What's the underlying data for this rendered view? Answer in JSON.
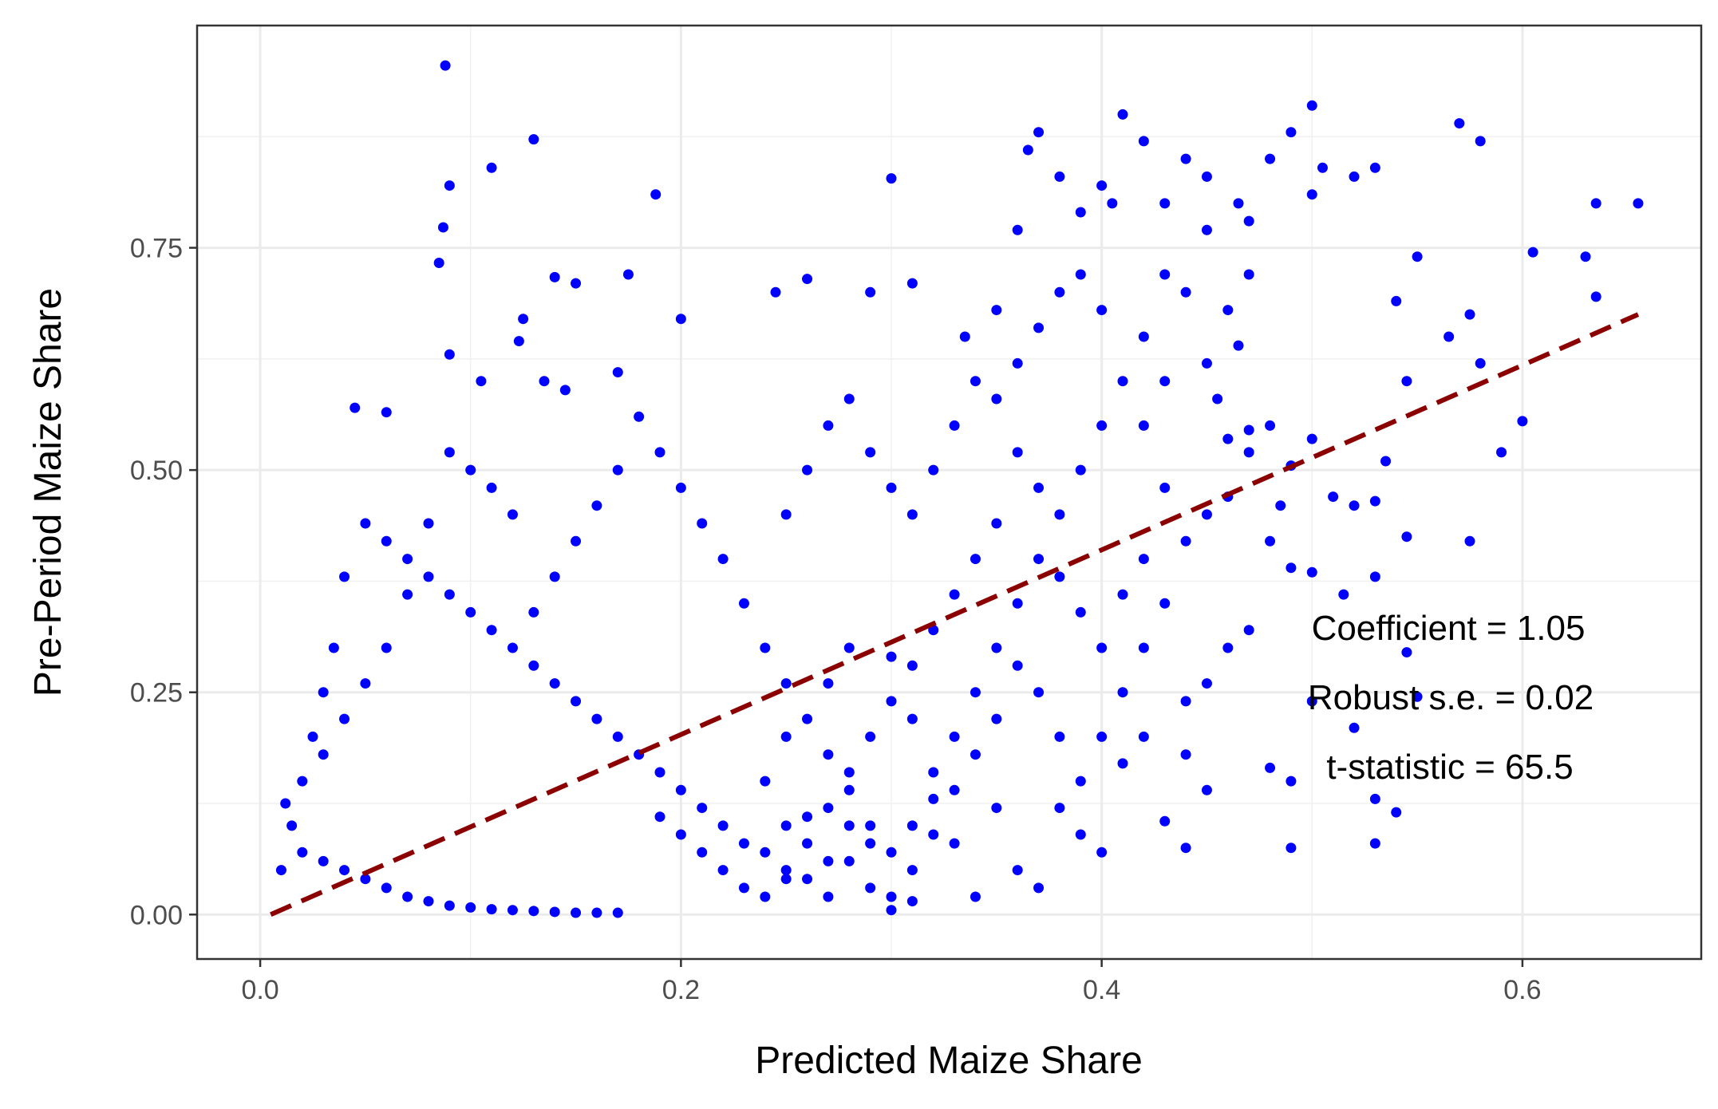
{
  "chart_data": {
    "type": "scatter",
    "title": "",
    "xlabel": "Predicted Maize Share",
    "ylabel": "Pre-Period Maize Share",
    "xlim": [
      -0.03,
      0.685
    ],
    "ylim": [
      -0.05,
      1.0
    ],
    "x_ticks": [
      {
        "value": 0.0,
        "label": "0.0"
      },
      {
        "value": 0.2,
        "label": "0.2"
      },
      {
        "value": 0.4,
        "label": "0.4"
      },
      {
        "value": 0.6,
        "label": "0.6"
      }
    ],
    "y_ticks": [
      {
        "value": 0.0,
        "label": "0.00"
      },
      {
        "value": 0.25,
        "label": "0.25"
      },
      {
        "value": 0.5,
        "label": "0.50"
      },
      {
        "value": 0.75,
        "label": "0.75"
      }
    ],
    "grid": true,
    "point_color": "#0000ff",
    "fit_line": {
      "style": "dashed",
      "color": "#8b0000",
      "x": [
        0.005,
        0.655
      ],
      "y": [
        0.0,
        0.675
      ]
    },
    "annotations": [
      "Coefficient = 1.05",
      "Robust s.e. = 0.02",
      "t-statistic = 65.5"
    ],
    "series": [
      {
        "points": [
          [
            0.088,
            0.955
          ],
          [
            0.13,
            0.872
          ],
          [
            0.11,
            0.84
          ],
          [
            0.09,
            0.82
          ],
          [
            0.188,
            0.81
          ],
          [
            0.087,
            0.773
          ],
          [
            0.085,
            0.733
          ],
          [
            0.14,
            0.717
          ],
          [
            0.15,
            0.71
          ],
          [
            0.175,
            0.72
          ],
          [
            0.125,
            0.67
          ],
          [
            0.123,
            0.645
          ],
          [
            0.2,
            0.67
          ],
          [
            0.09,
            0.63
          ],
          [
            0.105,
            0.6
          ],
          [
            0.17,
            0.61
          ],
          [
            0.135,
            0.6
          ],
          [
            0.145,
            0.59
          ],
          [
            0.06,
            0.565
          ],
          [
            0.045,
            0.57
          ],
          [
            0.3,
            0.828
          ],
          [
            0.26,
            0.715
          ],
          [
            0.245,
            0.7
          ],
          [
            0.29,
            0.7
          ],
          [
            0.31,
            0.71
          ],
          [
            0.335,
            0.65
          ],
          [
            0.35,
            0.68
          ],
          [
            0.36,
            0.77
          ],
          [
            0.365,
            0.86
          ],
          [
            0.37,
            0.88
          ],
          [
            0.38,
            0.83
          ],
          [
            0.39,
            0.79
          ],
          [
            0.4,
            0.82
          ],
          [
            0.405,
            0.8
          ],
          [
            0.41,
            0.9
          ],
          [
            0.42,
            0.87
          ],
          [
            0.43,
            0.8
          ],
          [
            0.44,
            0.85
          ],
          [
            0.45,
            0.83
          ],
          [
            0.465,
            0.8
          ],
          [
            0.47,
            0.78
          ],
          [
            0.48,
            0.85
          ],
          [
            0.49,
            0.88
          ],
          [
            0.5,
            0.91
          ],
          [
            0.505,
            0.84
          ],
          [
            0.5,
            0.81
          ],
          [
            0.52,
            0.83
          ],
          [
            0.53,
            0.84
          ],
          [
            0.57,
            0.89
          ],
          [
            0.58,
            0.87
          ],
          [
            0.635,
            0.8
          ],
          [
            0.655,
            0.8
          ],
          [
            0.605,
            0.745
          ],
          [
            0.63,
            0.74
          ],
          [
            0.635,
            0.695
          ],
          [
            0.575,
            0.675
          ],
          [
            0.55,
            0.74
          ],
          [
            0.54,
            0.69
          ],
          [
            0.565,
            0.65
          ],
          [
            0.545,
            0.6
          ],
          [
            0.58,
            0.62
          ],
          [
            0.6,
            0.555
          ],
          [
            0.59,
            0.52
          ],
          [
            0.535,
            0.51
          ],
          [
            0.53,
            0.465
          ],
          [
            0.545,
            0.425
          ],
          [
            0.575,
            0.42
          ],
          [
            0.48,
            0.55
          ],
          [
            0.47,
            0.545
          ],
          [
            0.46,
            0.535
          ],
          [
            0.49,
            0.505
          ],
          [
            0.5,
            0.535
          ],
          [
            0.51,
            0.47
          ],
          [
            0.52,
            0.46
          ],
          [
            0.485,
            0.46
          ],
          [
            0.48,
            0.42
          ],
          [
            0.49,
            0.39
          ],
          [
            0.5,
            0.385
          ],
          [
            0.515,
            0.36
          ],
          [
            0.53,
            0.38
          ],
          [
            0.545,
            0.295
          ],
          [
            0.55,
            0.245
          ],
          [
            0.52,
            0.21
          ],
          [
            0.5,
            0.24
          ],
          [
            0.49,
            0.15
          ],
          [
            0.48,
            0.165
          ],
          [
            0.53,
            0.13
          ],
          [
            0.54,
            0.115
          ],
          [
            0.53,
            0.08
          ],
          [
            0.49,
            0.075
          ],
          [
            0.47,
            0.32
          ],
          [
            0.46,
            0.3
          ],
          [
            0.45,
            0.26
          ],
          [
            0.44,
            0.24
          ],
          [
            0.44,
            0.18
          ],
          [
            0.45,
            0.14
          ],
          [
            0.43,
            0.105
          ],
          [
            0.44,
            0.075
          ],
          [
            0.42,
            0.2
          ],
          [
            0.41,
            0.17
          ],
          [
            0.45,
            0.45
          ],
          [
            0.44,
            0.42
          ],
          [
            0.43,
            0.48
          ],
          [
            0.46,
            0.47
          ],
          [
            0.42,
            0.55
          ],
          [
            0.43,
            0.6
          ],
          [
            0.45,
            0.62
          ],
          [
            0.44,
            0.7
          ],
          [
            0.43,
            0.72
          ],
          [
            0.45,
            0.77
          ],
          [
            0.46,
            0.68
          ],
          [
            0.47,
            0.72
          ],
          [
            0.465,
            0.64
          ],
          [
            0.455,
            0.58
          ],
          [
            0.47,
            0.52
          ],
          [
            0.33,
            0.08
          ],
          [
            0.34,
            0.02
          ],
          [
            0.31,
            0.015
          ],
          [
            0.3,
            0.005
          ],
          [
            0.36,
            0.05
          ],
          [
            0.38,
            0.12
          ],
          [
            0.39,
            0.09
          ],
          [
            0.4,
            0.07
          ],
          [
            0.37,
            0.03
          ],
          [
            0.35,
            0.12
          ],
          [
            0.32,
            0.16
          ],
          [
            0.31,
            0.22
          ],
          [
            0.3,
            0.29
          ],
          [
            0.28,
            0.3
          ],
          [
            0.27,
            0.26
          ],
          [
            0.25,
            0.2
          ],
          [
            0.24,
            0.15
          ],
          [
            0.26,
            0.11
          ],
          [
            0.28,
            0.06
          ],
          [
            0.29,
            0.03
          ],
          [
            0.27,
            0.02
          ],
          [
            0.25,
            0.05
          ],
          [
            0.23,
            0.08
          ],
          [
            0.22,
            0.1
          ],
          [
            0.21,
            0.12
          ],
          [
            0.2,
            0.14
          ],
          [
            0.19,
            0.16
          ],
          [
            0.18,
            0.18
          ],
          [
            0.17,
            0.2
          ],
          [
            0.16,
            0.22
          ],
          [
            0.15,
            0.24
          ],
          [
            0.14,
            0.26
          ],
          [
            0.13,
            0.28
          ],
          [
            0.12,
            0.3
          ],
          [
            0.11,
            0.32
          ],
          [
            0.1,
            0.34
          ],
          [
            0.09,
            0.36
          ],
          [
            0.08,
            0.38
          ],
          [
            0.07,
            0.4
          ],
          [
            0.06,
            0.42
          ],
          [
            0.05,
            0.44
          ],
          [
            0.04,
            0.38
          ],
          [
            0.035,
            0.3
          ],
          [
            0.03,
            0.25
          ],
          [
            0.025,
            0.2
          ],
          [
            0.02,
            0.15
          ],
          [
            0.015,
            0.1
          ],
          [
            0.012,
            0.125
          ],
          [
            0.01,
            0.05
          ],
          [
            0.02,
            0.07
          ],
          [
            0.03,
            0.06
          ],
          [
            0.04,
            0.05
          ],
          [
            0.05,
            0.04
          ],
          [
            0.06,
            0.03
          ],
          [
            0.07,
            0.02
          ],
          [
            0.08,
            0.015
          ],
          [
            0.09,
            0.01
          ],
          [
            0.1,
            0.008
          ],
          [
            0.11,
            0.006
          ],
          [
            0.12,
            0.005
          ],
          [
            0.13,
            0.004
          ],
          [
            0.14,
            0.003
          ],
          [
            0.15,
            0.002
          ],
          [
            0.16,
            0.002
          ],
          [
            0.17,
            0.002
          ],
          [
            0.25,
            0.45
          ],
          [
            0.26,
            0.5
          ],
          [
            0.27,
            0.55
          ],
          [
            0.28,
            0.58
          ],
          [
            0.29,
            0.52
          ],
          [
            0.3,
            0.48
          ],
          [
            0.31,
            0.45
          ],
          [
            0.32,
            0.5
          ],
          [
            0.33,
            0.55
          ],
          [
            0.34,
            0.6
          ],
          [
            0.35,
            0.58
          ],
          [
            0.36,
            0.52
          ],
          [
            0.37,
            0.48
          ],
          [
            0.38,
            0.45
          ],
          [
            0.39,
            0.5
          ],
          [
            0.4,
            0.55
          ],
          [
            0.41,
            0.6
          ],
          [
            0.42,
            0.65
          ],
          [
            0.4,
            0.68
          ],
          [
            0.39,
            0.72
          ],
          [
            0.38,
            0.7
          ],
          [
            0.37,
            0.66
          ],
          [
            0.36,
            0.62
          ],
          [
            0.35,
            0.44
          ],
          [
            0.34,
            0.4
          ],
          [
            0.33,
            0.36
          ],
          [
            0.32,
            0.32
          ],
          [
            0.31,
            0.28
          ],
          [
            0.3,
            0.24
          ],
          [
            0.29,
            0.2
          ],
          [
            0.28,
            0.16
          ],
          [
            0.27,
            0.12
          ],
          [
            0.26,
            0.08
          ],
          [
            0.25,
            0.04
          ],
          [
            0.24,
            0.02
          ],
          [
            0.23,
            0.03
          ],
          [
            0.22,
            0.05
          ],
          [
            0.21,
            0.07
          ],
          [
            0.2,
            0.09
          ],
          [
            0.19,
            0.11
          ],
          [
            0.22,
            0.4
          ],
          [
            0.21,
            0.44
          ],
          [
            0.2,
            0.48
          ],
          [
            0.19,
            0.52
          ],
          [
            0.18,
            0.56
          ],
          [
            0.17,
            0.5
          ],
          [
            0.16,
            0.46
          ],
          [
            0.15,
            0.42
          ],
          [
            0.14,
            0.38
          ],
          [
            0.13,
            0.34
          ],
          [
            0.12,
            0.45
          ],
          [
            0.11,
            0.48
          ],
          [
            0.1,
            0.5
          ],
          [
            0.09,
            0.52
          ],
          [
            0.08,
            0.44
          ],
          [
            0.07,
            0.36
          ],
          [
            0.06,
            0.3
          ],
          [
            0.05,
            0.26
          ],
          [
            0.04,
            0.22
          ],
          [
            0.03,
            0.18
          ],
          [
            0.23,
            0.35
          ],
          [
            0.24,
            0.3
          ],
          [
            0.25,
            0.26
          ],
          [
            0.26,
            0.22
          ],
          [
            0.27,
            0.18
          ],
          [
            0.28,
            0.14
          ],
          [
            0.29,
            0.1
          ],
          [
            0.3,
            0.07
          ],
          [
            0.31,
            0.1
          ],
          [
            0.32,
            0.13
          ],
          [
            0.33,
            0.2
          ],
          [
            0.34,
            0.25
          ],
          [
            0.35,
            0.3
          ],
          [
            0.36,
            0.35
          ],
          [
            0.37,
            0.4
          ],
          [
            0.38,
            0.38
          ],
          [
            0.39,
            0.34
          ],
          [
            0.4,
            0.3
          ],
          [
            0.41,
            0.36
          ],
          [
            0.42,
            0.4
          ],
          [
            0.43,
            0.35
          ],
          [
            0.42,
            0.3
          ],
          [
            0.41,
            0.25
          ],
          [
            0.4,
            0.2
          ],
          [
            0.39,
            0.15
          ],
          [
            0.38,
            0.2
          ],
          [
            0.37,
            0.25
          ],
          [
            0.36,
            0.28
          ],
          [
            0.35,
            0.22
          ],
          [
            0.34,
            0.18
          ],
          [
            0.33,
            0.14
          ],
          [
            0.32,
            0.09
          ],
          [
            0.31,
            0.05
          ],
          [
            0.3,
            0.02
          ],
          [
            0.29,
            0.08
          ],
          [
            0.28,
            0.1
          ],
          [
            0.27,
            0.06
          ],
          [
            0.26,
            0.04
          ],
          [
            0.25,
            0.1
          ],
          [
            0.24,
            0.07
          ]
        ]
      }
    ]
  }
}
